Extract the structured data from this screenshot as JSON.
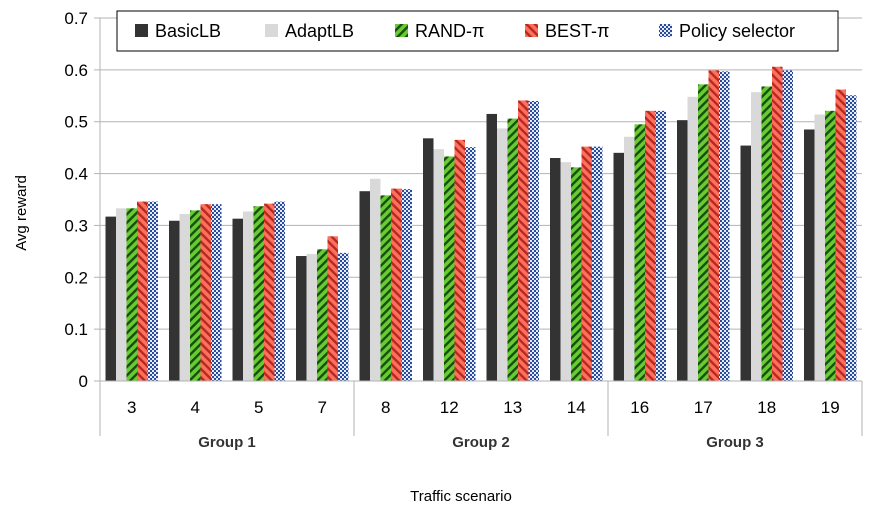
{
  "chart_data": {
    "type": "bar",
    "title": "",
    "xlabel": "Traffic scenario",
    "ylabel": "Avg reward",
    "ylim": [
      0,
      0.7
    ],
    "yticks": [
      "0",
      "0.1",
      "0.2",
      "0.3",
      "0.4",
      "0.5",
      "0.6",
      "0.7"
    ],
    "grid": true,
    "legend_position": "top",
    "categories": [
      "3",
      "4",
      "5",
      "7",
      "8",
      "12",
      "13",
      "14",
      "16",
      "17",
      "18",
      "19"
    ],
    "groups": [
      {
        "label": "Group 1",
        "categories": [
          "3",
          "4",
          "5",
          "7"
        ]
      },
      {
        "label": "Group 2",
        "categories": [
          "8",
          "12",
          "13",
          "14"
        ]
      },
      {
        "label": "Group 3",
        "categories": [
          "16",
          "17",
          "18",
          "19"
        ]
      }
    ],
    "series": [
      {
        "name": "BasicLB",
        "color": "#333333",
        "pattern": "solid",
        "values": [
          0.317,
          0.309,
          0.313,
          0.241,
          0.366,
          0.468,
          0.515,
          0.43,
          0.44,
          0.503,
          0.454,
          0.485
        ]
      },
      {
        "name": "AdaptLB",
        "color": "#d9d9d9",
        "pattern": "solid",
        "values": [
          0.333,
          0.322,
          0.327,
          0.245,
          0.39,
          0.447,
          0.487,
          0.422,
          0.471,
          0.548,
          0.557,
          0.514
        ]
      },
      {
        "name": "RAND-π",
        "color": "#66cc33",
        "pattern": "hatch-green",
        "values": [
          0.333,
          0.329,
          0.337,
          0.254,
          0.358,
          0.433,
          0.506,
          0.412,
          0.495,
          0.572,
          0.568,
          0.521
        ]
      },
      {
        "name": "BEST-π",
        "color": "#ff6655",
        "pattern": "hatch-red",
        "values": [
          0.346,
          0.341,
          0.342,
          0.279,
          0.371,
          0.465,
          0.541,
          0.452,
          0.521,
          0.599,
          0.606,
          0.562
        ]
      },
      {
        "name": "Policy selector",
        "color": "#3355aa",
        "pattern": "checker-blue",
        "values": [
          0.346,
          0.341,
          0.346,
          0.247,
          0.37,
          0.451,
          0.54,
          0.452,
          0.521,
          0.597,
          0.599,
          0.551
        ]
      }
    ]
  }
}
